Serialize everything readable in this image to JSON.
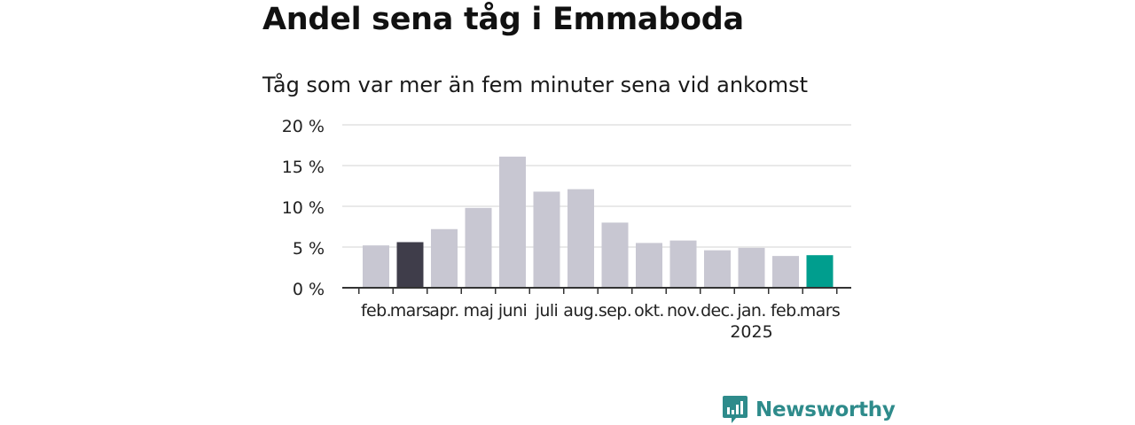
{
  "header": {
    "title": "Andel sena tåg i Emmaboda",
    "subtitle": "Tåg som var mer än fem minuter sena vid ankomst"
  },
  "chart_data": {
    "type": "bar",
    "categories": [
      "feb.",
      "mars",
      "apr.",
      "maj",
      "juni",
      "juli",
      "aug.",
      "sep.",
      "okt.",
      "nov.",
      "dec.",
      "jan.",
      "feb.",
      "mars"
    ],
    "category_sublabels": [
      "",
      "",
      "",
      "",
      "",
      "",
      "",
      "",
      "",
      "",
      "",
      "2025",
      "",
      ""
    ],
    "values": [
      5.2,
      5.6,
      7.2,
      9.8,
      16.1,
      11.8,
      12.1,
      8.0,
      5.5,
      5.8,
      4.6,
      4.9,
      3.9,
      4.0
    ],
    "bar_colors": [
      "#c8c7d2",
      "#3f3d4a",
      "#c8c7d2",
      "#c8c7d2",
      "#c8c7d2",
      "#c8c7d2",
      "#c8c7d2",
      "#c8c7d2",
      "#c8c7d2",
      "#c8c7d2",
      "#c8c7d2",
      "#c8c7d2",
      "#c8c7d2",
      "#009e8e"
    ],
    "yticks": [
      0,
      5,
      10,
      15,
      20
    ],
    "ytick_labels": [
      "0 %",
      "5 %",
      "10 %",
      "15 %",
      "20 %"
    ],
    "ylim": [
      0,
      20
    ],
    "grid": true,
    "xlabel": "",
    "ylabel": ""
  },
  "brand": {
    "name": "Newsworthy",
    "color": "#2e8b8b"
  }
}
